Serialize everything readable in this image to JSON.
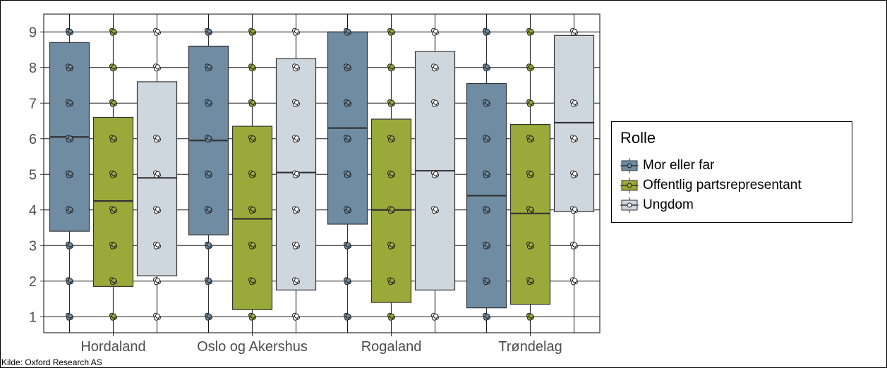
{
  "chart_data": {
    "type": "box",
    "title": "",
    "xlabel": "",
    "ylabel": "",
    "ylim": [
      0.55,
      9.5
    ],
    "yticks": [
      1,
      2,
      3,
      4,
      5,
      6,
      7,
      8,
      9
    ],
    "grid": true,
    "legend_position": "right",
    "legend_title": "Rolle",
    "categories": [
      "Hordaland",
      "Oslo og Akershus",
      "Rogaland",
      "Trøndelag"
    ],
    "series": [
      {
        "name": "Mor eller far",
        "color": "#6f8ca2",
        "boxes": [
          {
            "min": 1,
            "q1": 3.4,
            "median": 6.05,
            "q3": 8.7,
            "max": 9,
            "points": [
              1,
              2,
              3,
              4,
              5,
              6,
              7,
              8,
              9
            ]
          },
          {
            "min": 1,
            "q1": 3.3,
            "median": 5.95,
            "q3": 8.6,
            "max": 9,
            "points": [
              1,
              2,
              3,
              4,
              5,
              6,
              7,
              8,
              9
            ]
          },
          {
            "min": 1,
            "q1": 3.6,
            "median": 6.3,
            "q3": 9.0,
            "max": 9,
            "points": [
              1,
              2,
              3,
              4,
              5,
              6,
              7,
              8,
              9
            ]
          },
          {
            "min": 1,
            "q1": 1.25,
            "median": 4.4,
            "q3": 7.55,
            "max": 9,
            "points": [
              1,
              2,
              3,
              4,
              5,
              6,
              7,
              8,
              9
            ]
          }
        ]
      },
      {
        "name": "Offentlig partsrepresentant",
        "color": "#9aaa3a",
        "boxes": [
          {
            "min": 1,
            "q1": 1.85,
            "median": 4.25,
            "q3": 6.6,
            "max": 9,
            "points": [
              1,
              2,
              3,
              4,
              5,
              6,
              7,
              8,
              9
            ]
          },
          {
            "min": 1,
            "q1": 1.2,
            "median": 3.75,
            "q3": 6.35,
            "max": 9,
            "points": [
              1,
              2,
              3,
              4,
              5,
              6,
              7,
              8,
              9
            ]
          },
          {
            "min": 1,
            "q1": 1.4,
            "median": 4.0,
            "q3": 6.55,
            "max": 9,
            "points": [
              1,
              2,
              3,
              4,
              5,
              6,
              7,
              8,
              9
            ]
          },
          {
            "min": 1,
            "q1": 1.35,
            "median": 3.9,
            "q3": 6.4,
            "max": 9,
            "points": [
              1,
              2,
              3,
              4,
              5,
              6,
              7,
              8,
              9
            ]
          }
        ]
      },
      {
        "name": "Ungdom",
        "color": "#ced6de",
        "boxes": [
          {
            "min": 1,
            "q1": 2.15,
            "median": 4.9,
            "q3": 7.6,
            "max": 9,
            "points": [
              1,
              2,
              3,
              4,
              5,
              6,
              8,
              9
            ]
          },
          {
            "min": 1,
            "q1": 1.75,
            "median": 5.05,
            "q3": 8.25,
            "max": 9,
            "points": [
              1,
              2,
              3,
              4,
              5,
              6,
              7,
              8,
              9
            ]
          },
          {
            "min": 1,
            "q1": 1.75,
            "median": 5.1,
            "q3": 8.45,
            "max": 9,
            "points": [
              1,
              4,
              5,
              7,
              8,
              9
            ]
          },
          {
            "min": 2,
            "q1": 3.95,
            "median": 6.45,
            "q3": 8.9,
            "max": 9,
            "points": [
              2,
              3,
              4,
              5,
              6,
              7,
              9
            ]
          }
        ]
      }
    ]
  },
  "source": "Kilde: Oxford Research AS"
}
